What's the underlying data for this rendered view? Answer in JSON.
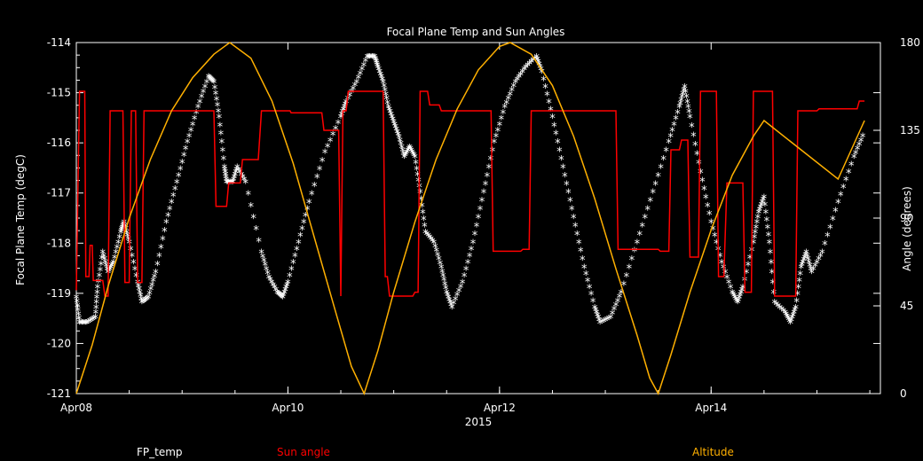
{
  "chart_data": {
    "type": "line",
    "title": "Focal Plane Temp and Sun Angles",
    "xlabel": "2015",
    "ylabel_left": "Focal Plane Temp (degC)",
    "ylabel_right": "Angle (degrees)",
    "x_range_days": [
      0,
      7.6
    ],
    "x_ticks": [
      {
        "label": "Apr08",
        "day": 0
      },
      {
        "label": "Apr10",
        "day": 2
      },
      {
        "label": "Apr12",
        "day": 4
      },
      {
        "label": "Apr14",
        "day": 6
      }
    ],
    "ylim_left": [
      -121,
      -114
    ],
    "yticks_left": [
      "-121",
      "-120",
      "-119",
      "-118",
      "-117",
      "-116",
      "-115",
      "-114"
    ],
    "ylim_right": [
      0,
      180
    ],
    "yticks_right": [
      "0",
      "45",
      "90",
      "135",
      "180"
    ],
    "grid": false,
    "legend": [
      {
        "label": "FP_temp",
        "color": "#ffffff"
      },
      {
        "label": "Sun angle",
        "color": "#ff0000"
      },
      {
        "label": "Altitude",
        "color": "#ffb000"
      }
    ],
    "series": [
      {
        "axis": "left",
        "color": "#ffffff",
        "marker": "asterisk",
        "points": [
          [
            0.0,
            -119.1
          ],
          [
            0.03,
            -119.6
          ],
          [
            0.1,
            -119.6
          ],
          [
            0.18,
            -119.5
          ],
          [
            0.2,
            -118.9
          ],
          [
            0.25,
            -118.2
          ],
          [
            0.3,
            -118.6
          ],
          [
            0.35,
            -118.4
          ],
          [
            0.42,
            -117.8
          ],
          [
            0.45,
            -117.6
          ],
          [
            0.5,
            -118.0
          ],
          [
            0.58,
            -118.8
          ],
          [
            0.62,
            -119.2
          ],
          [
            0.68,
            -119.1
          ],
          [
            0.75,
            -118.6
          ],
          [
            0.85,
            -117.6
          ],
          [
            0.95,
            -116.8
          ],
          [
            1.05,
            -116.0
          ],
          [
            1.15,
            -115.3
          ],
          [
            1.25,
            -114.7
          ],
          [
            1.3,
            -114.8
          ],
          [
            1.35,
            -115.5
          ],
          [
            1.4,
            -116.5
          ],
          [
            1.42,
            -116.8
          ],
          [
            1.48,
            -116.8
          ],
          [
            1.52,
            -116.5
          ],
          [
            1.6,
            -116.8
          ],
          [
            1.75,
            -118.2
          ],
          [
            1.82,
            -118.7
          ],
          [
            1.9,
            -119.0
          ],
          [
            1.95,
            -119.1
          ],
          [
            2.0,
            -118.8
          ],
          [
            2.1,
            -118.0
          ],
          [
            2.2,
            -117.2
          ],
          [
            2.35,
            -116.2
          ],
          [
            2.5,
            -115.5
          ],
          [
            2.55,
            -115.2
          ],
          [
            2.65,
            -114.8
          ],
          [
            2.75,
            -114.3
          ],
          [
            2.82,
            -114.3
          ],
          [
            2.85,
            -114.5
          ],
          [
            2.9,
            -114.8
          ],
          [
            2.95,
            -115.3
          ],
          [
            3.0,
            -115.6
          ],
          [
            3.05,
            -115.9
          ],
          [
            3.1,
            -116.3
          ],
          [
            3.15,
            -116.1
          ],
          [
            3.2,
            -116.3
          ],
          [
            3.25,
            -117.0
          ],
          [
            3.3,
            -117.8
          ],
          [
            3.38,
            -118.0
          ],
          [
            3.45,
            -118.5
          ],
          [
            3.5,
            -119.0
          ],
          [
            3.55,
            -119.3
          ],
          [
            3.65,
            -118.8
          ],
          [
            3.75,
            -118.0
          ],
          [
            3.85,
            -117.0
          ],
          [
            3.95,
            -116.0
          ],
          [
            4.05,
            -115.3
          ],
          [
            4.15,
            -114.8
          ],
          [
            4.25,
            -114.5
          ],
          [
            4.35,
            -114.3
          ],
          [
            4.4,
            -114.6
          ],
          [
            4.5,
            -115.5
          ],
          [
            4.6,
            -116.5
          ],
          [
            4.7,
            -117.5
          ],
          [
            4.8,
            -118.5
          ],
          [
            4.9,
            -119.3
          ],
          [
            4.95,
            -119.6
          ],
          [
            5.05,
            -119.5
          ],
          [
            5.15,
            -119.0
          ],
          [
            5.3,
            -118.0
          ],
          [
            5.45,
            -117.0
          ],
          [
            5.6,
            -116.0
          ],
          [
            5.7,
            -115.3
          ],
          [
            5.75,
            -114.9
          ],
          [
            5.8,
            -115.5
          ],
          [
            5.9,
            -116.6
          ],
          [
            6.0,
            -117.6
          ],
          [
            6.1,
            -118.4
          ],
          [
            6.2,
            -119.0
          ],
          [
            6.25,
            -119.2
          ],
          [
            6.3,
            -118.9
          ],
          [
            6.4,
            -118.0
          ],
          [
            6.45,
            -117.4
          ],
          [
            6.5,
            -117.1
          ],
          [
            6.55,
            -118.0
          ],
          [
            6.6,
            -119.2
          ],
          [
            6.7,
            -119.4
          ],
          [
            6.75,
            -119.6
          ],
          [
            6.8,
            -119.3
          ],
          [
            6.85,
            -118.5
          ],
          [
            6.9,
            -118.2
          ],
          [
            6.95,
            -118.6
          ],
          [
            7.05,
            -118.2
          ],
          [
            7.2,
            -117.2
          ],
          [
            7.35,
            -116.3
          ],
          [
            7.45,
            -115.8
          ]
        ]
      },
      {
        "axis": "right",
        "color": "#ff0000",
        "marker": "none",
        "points": [
          [
            0.0,
            53
          ],
          [
            0.03,
            155
          ],
          [
            0.08,
            155
          ],
          [
            0.09,
            60
          ],
          [
            0.12,
            60
          ],
          [
            0.13,
            76
          ],
          [
            0.15,
            76
          ],
          [
            0.16,
            58
          ],
          [
            0.25,
            58
          ],
          [
            0.27,
            50
          ],
          [
            0.3,
            50
          ],
          [
            0.32,
            145
          ],
          [
            0.44,
            145
          ],
          [
            0.46,
            57
          ],
          [
            0.5,
            57
          ],
          [
            0.52,
            145
          ],
          [
            0.56,
            145
          ],
          [
            0.58,
            57
          ],
          [
            0.62,
            57
          ],
          [
            0.64,
            145
          ],
          [
            1.3,
            145
          ],
          [
            1.32,
            96
          ],
          [
            1.42,
            96
          ],
          [
            1.44,
            108
          ],
          [
            1.55,
            108
          ],
          [
            1.57,
            120
          ],
          [
            1.72,
            120
          ],
          [
            1.75,
            145
          ],
          [
            2.02,
            145
          ],
          [
            2.03,
            144
          ],
          [
            2.32,
            144
          ],
          [
            2.34,
            135
          ],
          [
            2.48,
            135
          ],
          [
            2.5,
            50
          ],
          [
            2.52,
            145
          ],
          [
            2.55,
            145
          ],
          [
            2.57,
            155
          ],
          [
            2.9,
            155
          ],
          [
            2.92,
            60
          ],
          [
            2.94,
            60
          ],
          [
            2.96,
            50
          ],
          [
            3.18,
            50
          ],
          [
            3.2,
            52
          ],
          [
            3.23,
            52
          ],
          [
            3.25,
            155
          ],
          [
            3.32,
            155
          ],
          [
            3.34,
            148
          ],
          [
            3.43,
            148
          ],
          [
            3.45,
            145
          ],
          [
            3.7,
            145
          ],
          [
            3.8,
            145
          ],
          [
            3.92,
            145
          ],
          [
            3.94,
            73
          ],
          [
            4.2,
            73
          ],
          [
            4.22,
            74
          ],
          [
            4.28,
            74
          ],
          [
            4.3,
            145
          ],
          [
            5.1,
            145
          ],
          [
            5.12,
            74
          ],
          [
            5.5,
            74
          ],
          [
            5.52,
            73
          ],
          [
            5.6,
            73
          ],
          [
            5.62,
            125
          ],
          [
            5.7,
            125
          ],
          [
            5.72,
            130
          ],
          [
            5.78,
            130
          ],
          [
            5.8,
            70
          ],
          [
            5.88,
            70
          ],
          [
            5.9,
            155
          ],
          [
            6.05,
            155
          ],
          [
            6.07,
            60
          ],
          [
            6.12,
            60
          ],
          [
            6.15,
            108
          ],
          [
            6.3,
            108
          ],
          [
            6.32,
            52
          ],
          [
            6.38,
            52
          ],
          [
            6.4,
            155
          ],
          [
            6.58,
            155
          ],
          [
            6.6,
            50
          ],
          [
            6.8,
            50
          ],
          [
            6.82,
            145
          ],
          [
            7.0,
            145
          ],
          [
            7.02,
            146
          ],
          [
            7.38,
            146
          ],
          [
            7.4,
            150
          ],
          [
            7.45,
            150
          ]
        ]
      },
      {
        "axis": "right",
        "color": "#ffb000",
        "marker": "none",
        "points": [
          [
            0.0,
            0
          ],
          [
            0.15,
            25
          ],
          [
            0.3,
            55
          ],
          [
            0.5,
            90
          ],
          [
            0.7,
            120
          ],
          [
            0.9,
            145
          ],
          [
            1.1,
            162
          ],
          [
            1.3,
            174
          ],
          [
            1.45,
            180
          ],
          [
            1.65,
            172
          ],
          [
            1.85,
            150
          ],
          [
            2.05,
            118
          ],
          [
            2.25,
            80
          ],
          [
            2.45,
            42
          ],
          [
            2.6,
            14
          ],
          [
            2.72,
            0
          ],
          [
            2.85,
            22
          ],
          [
            3.0,
            52
          ],
          [
            3.2,
            88
          ],
          [
            3.4,
            120
          ],
          [
            3.6,
            146
          ],
          [
            3.8,
            166
          ],
          [
            4.0,
            178
          ],
          [
            4.1,
            180
          ],
          [
            4.3,
            174
          ],
          [
            4.5,
            158
          ],
          [
            4.7,
            132
          ],
          [
            4.9,
            100
          ],
          [
            5.1,
            64
          ],
          [
            5.3,
            30
          ],
          [
            5.42,
            8
          ],
          [
            5.5,
            0
          ],
          [
            5.62,
            20
          ],
          [
            5.8,
            52
          ],
          [
            6.0,
            84
          ],
          [
            6.2,
            112
          ],
          [
            6.4,
            132
          ],
          [
            6.5,
            140
          ],
          [
            7.2,
            110
          ],
          [
            7.45,
            140
          ]
        ]
      }
    ]
  }
}
